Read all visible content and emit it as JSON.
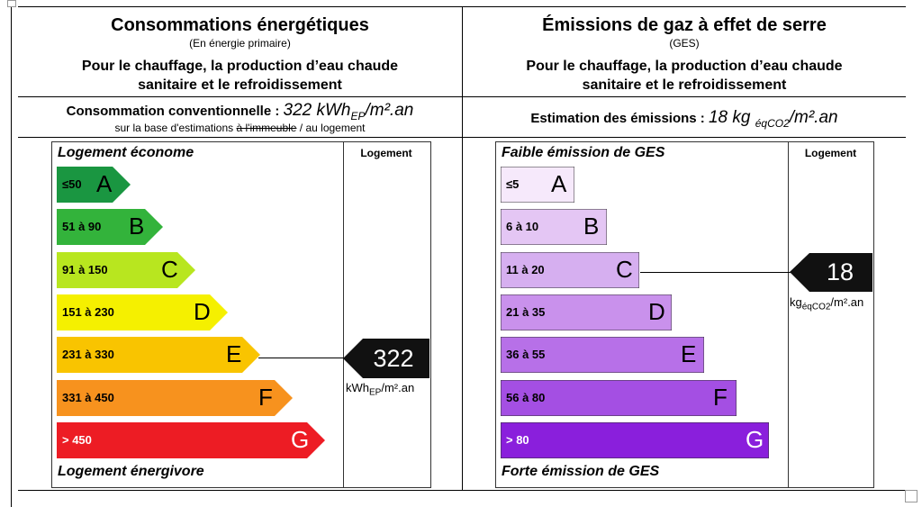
{
  "energy": {
    "title": "Consommations énergétiques",
    "subtitle": "(En énergie primaire)",
    "description_line1": "Pour le chauffage, la production d’eau chaude",
    "description_line2": "sanitaire et le refroidissement",
    "consumption_label": "Consommation conventionnelle : ",
    "consumption_value": "322 kWh",
    "consumption_sub": "EP",
    "consumption_unit": "/m².an",
    "basis_prefix": "sur la base d'estimations ",
    "basis_struck": "à l'immeuble",
    "basis_suffix": " / au logement",
    "top_label": "Logement économe",
    "bottom_label": "Logement énergivore",
    "column_header": "Logement",
    "value": "322",
    "unit_main": "kWh",
    "unit_sub": "EP",
    "unit_tail": "/m².an",
    "current_class": "E",
    "classes": [
      {
        "letter": "A",
        "range": "≤50",
        "color": "#1a9641"
      },
      {
        "letter": "B",
        "range": "51 à 90",
        "color": "#33b33b"
      },
      {
        "letter": "C",
        "range": "91 à 150",
        "color": "#b8e61f"
      },
      {
        "letter": "D",
        "range": "151 à 230",
        "color": "#f5f000"
      },
      {
        "letter": "E",
        "range": "231 à 330",
        "color": "#f9c400"
      },
      {
        "letter": "F",
        "range": "331 à 450",
        "color": "#f7921e"
      },
      {
        "letter": "G",
        "range": "> 450",
        "color": "#ed1c24"
      }
    ]
  },
  "ges": {
    "title": "Émissions de gaz à effet de serre",
    "subtitle": "(GES)",
    "description_line1": "Pour le chauffage, la production d’eau chaude",
    "description_line2": "sanitaire et le refroidissement",
    "estimate_label": "Estimation des émissions : ",
    "estimate_value": "18 kg ",
    "estimate_sub": "éqCO2",
    "estimate_unit": "/m².an",
    "top_label": "Faible émission de GES",
    "bottom_label": "Forte émission de GES",
    "column_header": "Logement",
    "value": "18",
    "unit_main": "kg",
    "unit_sub": "éqCO2",
    "unit_tail": "/m².an",
    "current_class": "C",
    "classes": [
      {
        "letter": "A",
        "range": "≤5",
        "color": "#f6e9fb"
      },
      {
        "letter": "B",
        "range": "6 à 10",
        "color": "#e4c6f4"
      },
      {
        "letter": "C",
        "range": "11 à 20",
        "color": "#d6aff0"
      },
      {
        "letter": "D",
        "range": "21 à 35",
        "color": "#c991ec"
      },
      {
        "letter": "E",
        "range": "36 à 55",
        "color": "#b770e8"
      },
      {
        "letter": "F",
        "range": "56 à 80",
        "color": "#a44fe3"
      },
      {
        "letter": "G",
        "range": "> 80",
        "color": "#8a1fdc"
      }
    ]
  },
  "colors": {
    "marker": "#111111",
    "border": "#000000"
  }
}
